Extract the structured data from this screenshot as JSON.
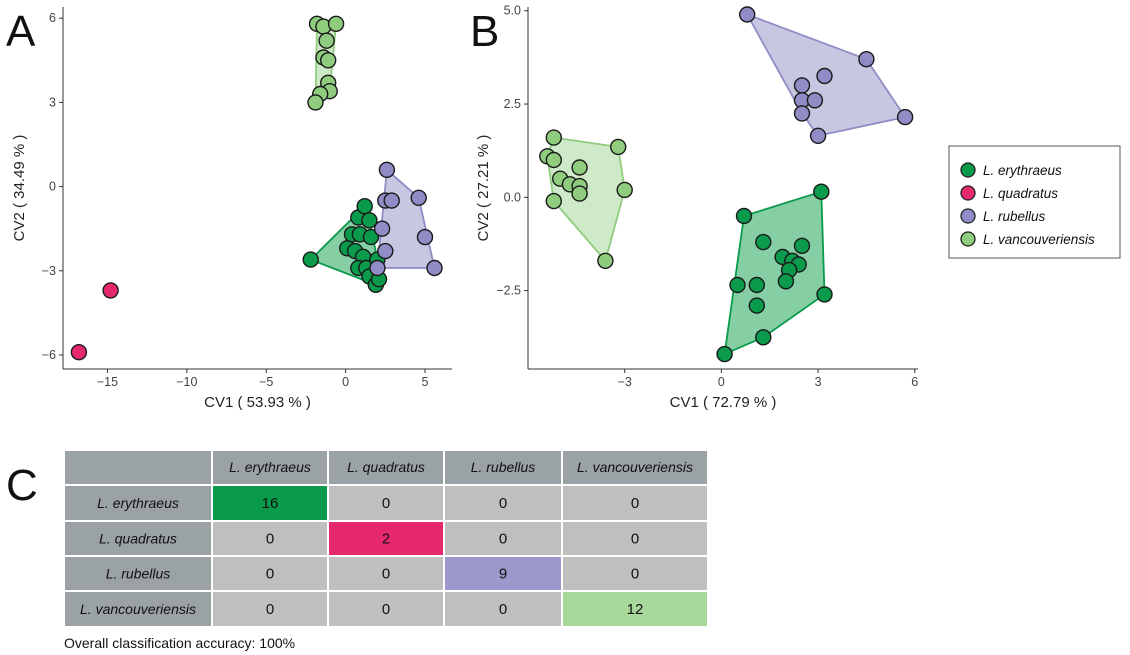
{
  "chart_data": [
    {
      "panel": "A",
      "type": "scatter",
      "xlabel": "CV1 ( 53.93 % )",
      "ylabel": "CV2 ( 34.49 % )",
      "xlim": [
        -17.8,
        6.7
      ],
      "ylim": [
        -6.5,
        6.4
      ],
      "xticks": [
        -15,
        -10,
        -5,
        0,
        5
      ],
      "xtick_labels": [
        "−15",
        "−10",
        "−5",
        "0",
        "5"
      ],
      "yticks": [
        -6,
        -3,
        0,
        3,
        6
      ],
      "ytick_labels": [
        "−6",
        "−3",
        "0",
        "3",
        "6"
      ],
      "hulls": true,
      "series": [
        {
          "name": "L. erythraeus",
          "color": "#0a9a4c",
          "fill": "#23a75a",
          "points": [
            [
              -2.2,
              -2.6
            ],
            [
              0.8,
              -1.1
            ],
            [
              1.2,
              -0.7
            ],
            [
              1.5,
              -1.2
            ],
            [
              0.4,
              -1.7
            ],
            [
              0.9,
              -1.7
            ],
            [
              1.6,
              -1.8
            ],
            [
              0.1,
              -2.2
            ],
            [
              0.6,
              -2.3
            ],
            [
              1.1,
              -2.5
            ],
            [
              0.8,
              -2.9
            ],
            [
              1.3,
              -2.9
            ],
            [
              1.9,
              -3.2
            ],
            [
              1.5,
              -3.2
            ],
            [
              1.9,
              -3.5
            ],
            [
              2.1,
              -3.3
            ],
            [
              2.0,
              -2.6
            ]
          ]
        },
        {
          "name": "L. quadratus",
          "color": "#e6286e",
          "fill": "#e6286e",
          "points": [
            [
              -14.8,
              -3.7
            ],
            [
              -16.8,
              -5.9
            ]
          ]
        },
        {
          "name": "L. rubellus",
          "color": "#8f8cc6",
          "fill": "#9b99cb",
          "points": [
            [
              2.6,
              0.6
            ],
            [
              4.6,
              -0.4
            ],
            [
              2.5,
              -0.5
            ],
            [
              2.9,
              -0.5
            ],
            [
              5.0,
              -1.8
            ],
            [
              2.5,
              -2.3
            ],
            [
              5.6,
              -2.9
            ],
            [
              2.0,
              -2.9
            ],
            [
              2.3,
              -1.5
            ]
          ]
        },
        {
          "name": "L. vancouveriensis",
          "color": "#8fcc7e",
          "fill": "#a8d89a",
          "points": [
            [
              -1.8,
              5.8
            ],
            [
              -1.4,
              5.7
            ],
            [
              -0.6,
              5.8
            ],
            [
              -1.2,
              5.2
            ],
            [
              -1.4,
              4.6
            ],
            [
              -1.1,
              4.5
            ],
            [
              -1.1,
              3.7
            ],
            [
              -1.0,
              3.4
            ],
            [
              -1.6,
              3.3
            ],
            [
              -1.9,
              3.0
            ]
          ]
        }
      ]
    },
    {
      "panel": "B",
      "type": "scatter",
      "xlabel": "CV1 ( 72.79 % )",
      "ylabel": "CV2 ( 27.21 % )",
      "xlim": [
        -6.0,
        6.1
      ],
      "ylim": [
        -4.6,
        5.1
      ],
      "xticks": [
        -3,
        0,
        3,
        6
      ],
      "xtick_labels": [
        "−3",
        "0",
        "3",
        "6"
      ],
      "yticks": [
        -2.5,
        0,
        2.5,
        5
      ],
      "ytick_labels": [
        "−2.5",
        "0.0",
        "2.5",
        "5.0"
      ],
      "hulls": true,
      "series": [
        {
          "name": "L. erythraeus",
          "color": "#0a9a4c",
          "fill": "#23a75a",
          "points": [
            [
              0.7,
              -0.5
            ],
            [
              3.1,
              0.15
            ],
            [
              1.3,
              -1.2
            ],
            [
              2.5,
              -1.3
            ],
            [
              1.9,
              -1.6
            ],
            [
              2.2,
              -1.7
            ],
            [
              2.4,
              -1.8
            ],
            [
              2.1,
              -1.95
            ],
            [
              0.5,
              -2.35
            ],
            [
              1.1,
              -2.35
            ],
            [
              2.0,
              -2.25
            ],
            [
              3.2,
              -2.6
            ],
            [
              1.1,
              -2.9
            ],
            [
              1.3,
              -3.75
            ],
            [
              0.1,
              -4.2
            ]
          ]
        },
        {
          "name": "L. quadratus",
          "color": "#e6286e",
          "fill": "#e6286e",
          "points": []
        },
        {
          "name": "L. rubellus",
          "color": "#8f8cc6",
          "fill": "#9b99cb",
          "points": [
            [
              0.8,
              4.9
            ],
            [
              4.5,
              3.7
            ],
            [
              3.2,
              3.25
            ],
            [
              2.5,
              3.0
            ],
            [
              2.5,
              2.6
            ],
            [
              2.9,
              2.6
            ],
            [
              2.5,
              2.25
            ],
            [
              3.0,
              1.65
            ],
            [
              5.7,
              2.15
            ]
          ]
        },
        {
          "name": "L. vancouveriensis",
          "color": "#8fcc7e",
          "fill": "#a8d89a",
          "points": [
            [
              -5.2,
              1.6
            ],
            [
              -3.2,
              1.35
            ],
            [
              -5.4,
              1.1
            ],
            [
              -5.2,
              1.0
            ],
            [
              -4.4,
              0.8
            ],
            [
              -5.0,
              0.5
            ],
            [
              -4.7,
              0.35
            ],
            [
              -4.4,
              0.3
            ],
            [
              -4.4,
              0.1
            ],
            [
              -3.0,
              0.2
            ],
            [
              -5.2,
              -0.1
            ],
            [
              -3.6,
              -1.7
            ]
          ]
        }
      ]
    },
    {
      "panel": "C",
      "type": "table",
      "columns": [
        "L. erythraeus",
        "L. quadratus",
        "L. rubellus",
        "L. vancouveriensis"
      ],
      "rows": [
        {
          "label": "L. erythraeus",
          "values": [
            "16",
            "0",
            "0",
            "0"
          ]
        },
        {
          "label": "L. quadratus",
          "values": [
            "0",
            "2",
            "0",
            "0"
          ]
        },
        {
          "label": "L. rubellus",
          "values": [
            "0",
            "0",
            "9",
            "0"
          ]
        },
        {
          "label": "L. vancouveriensis",
          "values": [
            "0",
            "0",
            "0",
            "12"
          ]
        }
      ],
      "header_color": "#9aa2a6",
      "cell_color": "#bfbfbf",
      "diagonal_colors": [
        "#0a9a4c",
        "#e6286e",
        "#9b99cb",
        "#a8d89a"
      ],
      "footnote": "Overall classification accuracy: 100%"
    }
  ],
  "panel_letters": {
    "a": "A",
    "b": "B",
    "c": "C"
  },
  "legend": {
    "items": [
      {
        "label": "L. erythraeus",
        "color": "#0a9a4c"
      },
      {
        "label": "L. quadratus",
        "color": "#e6286e"
      },
      {
        "label": "L. rubellus",
        "color": "#8f8cc6"
      },
      {
        "label": "L. vancouveriensis",
        "color": "#8fcc7e"
      }
    ]
  }
}
